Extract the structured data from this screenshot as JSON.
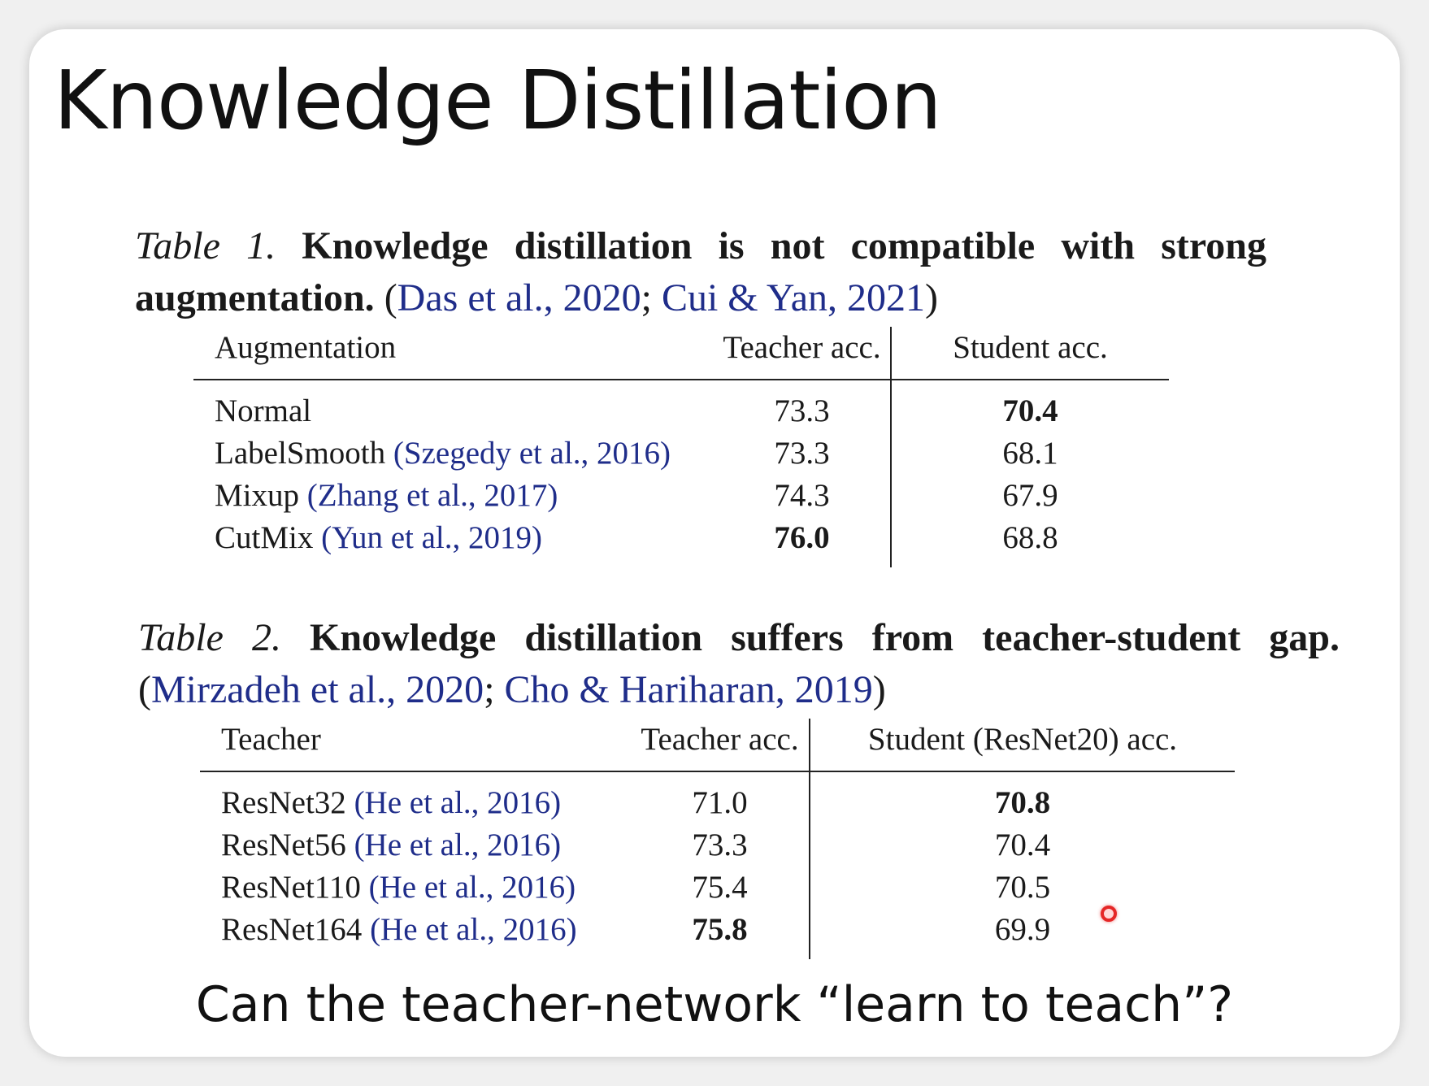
{
  "slide": {
    "title": "Knowledge Distillation",
    "question": "Can the teacher-network “learn to teach”?"
  },
  "table1": {
    "caption": {
      "label": "Table 1.",
      "bold": "Knowledge distillation is not compatible with strong augmentation.",
      "citation_open": "(",
      "cite_a": "Das et al., 2020",
      "citation_sep": "; ",
      "cite_b": "Cui & Yan, 2021",
      "citation_close": ")"
    },
    "headers": [
      "Augmentation",
      "Teacher acc.",
      "Student acc."
    ],
    "rows": [
      {
        "name": "Normal",
        "cite": "",
        "teacher": "73.3",
        "student": "70.4"
      },
      {
        "name": "LabelSmooth ",
        "cite": "(Szegedy et al., 2016)",
        "teacher": "73.3",
        "student": "68.1"
      },
      {
        "name": "Mixup ",
        "cite": "(Zhang et al., 2017)",
        "teacher": "74.3",
        "student": "67.9"
      },
      {
        "name": "CutMix ",
        "cite": "(Yun et al., 2019)",
        "teacher": "76.0",
        "student": "68.8"
      }
    ]
  },
  "table2": {
    "caption": {
      "label": "Table 2.",
      "bold": "Knowledge distillation suffers from teacher-student gap.",
      "citation_open": "(",
      "cite_a": "Mirzadeh et al., 2020",
      "citation_sep": "; ",
      "cite_b": "Cho & Hariharan, 2019",
      "citation_close": ")"
    },
    "headers": [
      "Teacher",
      "Teacher acc.",
      "Student (ResNet20) acc."
    ],
    "rows": [
      {
        "name": "ResNet32 ",
        "cite": "(He et al., 2016)",
        "teacher": "71.0",
        "student": "70.8"
      },
      {
        "name": "ResNet56 ",
        "cite": "(He et al., 2016)",
        "teacher": "73.3",
        "student": "70.4"
      },
      {
        "name": "ResNet110 ",
        "cite": "(He et al., 2016)",
        "teacher": "75.4",
        "student": "70.5"
      },
      {
        "name": "ResNet164 ",
        "cite": "(He et al., 2016)",
        "teacher": "75.8",
        "student": "69.9"
      }
    ]
  },
  "colors": {
    "citation": "#1f2d8a",
    "text": "#1a1a1a",
    "laser_pointer": "#e52626"
  }
}
